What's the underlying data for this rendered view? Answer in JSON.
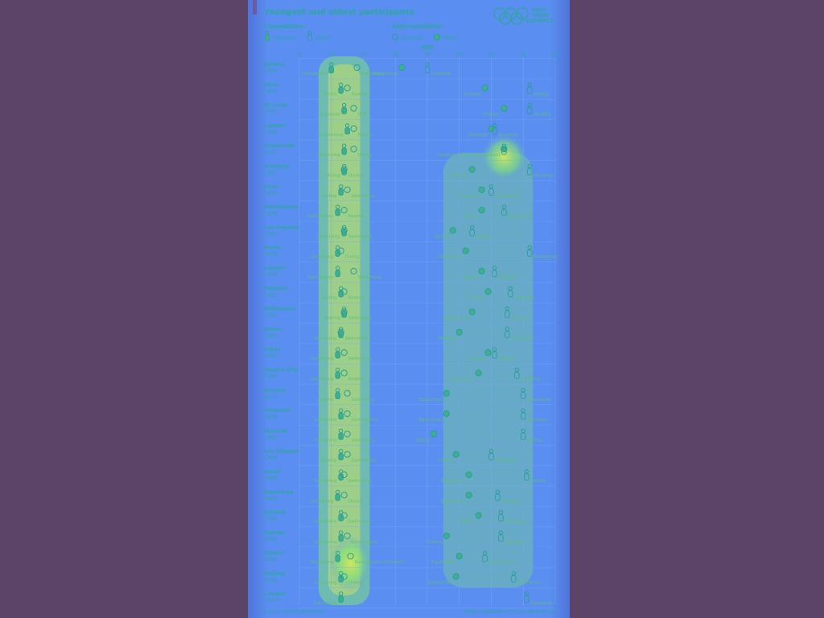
{
  "colors": {
    "background": "#5b4467",
    "panel": "#5a8ef0",
    "panel_edge": "#4ea6e8",
    "hot": "#d7e85a",
    "warm": "#7fe07a",
    "text": "#2fa6a0",
    "label": "#5fbf7a",
    "grid": "#7aa6f5",
    "marker_stroke": "#2a9e96",
    "marker_fill": "#3fb08e",
    "title_bar": "#6b5aa0"
  },
  "header": {
    "title": "Youngest and oldest participants",
    "logo_line1": "DAILY",
    "logo_line2": "CHART",
    "logo_line3": "OLYMPICS"
  },
  "legend": {
    "competitors_title": "Competitors:",
    "youngest": "Youngest",
    "oldest": "Oldest",
    "gold_title": "Gold medallists:",
    "gold_youngest": "Youngest",
    "gold_oldest": "Oldest"
  },
  "footer": {
    "source": "Source: Sports Reference",
    "note": "*Gold medallists yet to be determined"
  },
  "chart_data": {
    "type": "scatter",
    "title": "Youngest and oldest participants",
    "xlabel": "AGE",
    "xlim": [
      0,
      80
    ],
    "xticks": [
      "0",
      "10",
      "20",
      "30",
      "40",
      "50",
      "60",
      "70",
      "80"
    ],
    "series_names": [
      "Youngest competitor",
      "Youngest gold medallist",
      "Oldest gold medallist",
      "Oldest competitor"
    ],
    "games": [
      {
        "city": "Athens",
        "year": "1896",
        "yc": 10,
        "yc_sport": "Gymnastics",
        "yg": 18,
        "yg_sport": "Swimming",
        "og": 32,
        "og_sport": "Gymnastics",
        "oc": 40,
        "oc_sport": "Shooting"
      },
      {
        "city": "Paris",
        "year": "1900",
        "yc": 13,
        "yc_sport": "Tennis",
        "yg": 15,
        "yg_sport": "Rowing",
        "og": 58,
        "og_sport": "Croquet",
        "oc": 72,
        "oc_sport": "Sailing"
      },
      {
        "city": "St Louis",
        "year": "1904",
        "yc": 14,
        "yc_sport": "Lacrosse",
        "yg": 17,
        "yg_sport": "Golf",
        "og": 64,
        "og_sport": "Archery",
        "oc": 72,
        "oc_sport": "Archery"
      },
      {
        "city": "London",
        "year": "1908",
        "yc": 15,
        "yc_sport": "Swimming",
        "yg": 17,
        "yg_sport": "Rugby",
        "og": 60,
        "og_sport": "Shooting",
        "oc": 61,
        "oc_sport": "Shooting"
      },
      {
        "city": "Stockholm",
        "year": "1912",
        "yc": 14,
        "yc_sport": "Swimming",
        "yg": 17,
        "yg_sport": "Diving",
        "og": 64,
        "og_sport": "Shooting (team competition)",
        "oc": 64,
        "oc_sport": ""
      },
      {
        "city": "Antwerp",
        "year": "1920",
        "yc": 14,
        "yc_sport": "Diving",
        "yg": 14,
        "yg_sport": "Diving",
        "og": 54,
        "og_sport": "Archery",
        "oc": 72,
        "oc_sport": "Shooting"
      },
      {
        "city": "Paris",
        "year": "1924",
        "yc": 13,
        "yc_sport": "Sailing",
        "yg": 15,
        "yg_sport": "Swimming",
        "og": 57,
        "og_sport": "Shooting",
        "oc": 60,
        "oc_sport": "Equestrian"
      },
      {
        "city": "Amsterdam",
        "year": "1928",
        "yc": 12,
        "yc_sport": "Gymnastics",
        "yg": 14,
        "yg_sport": "Rowing",
        "og": 57,
        "og_sport": "Sailing",
        "oc": 64,
        "oc_sport": "Equestrian"
      },
      {
        "city": "Los Angeles",
        "year": "1932",
        "yc": 14,
        "yc_sport": "Swimming",
        "yg": 14,
        "yg_sport": "Swimming",
        "og": 48,
        "og_sport": "Sailing",
        "oc": 54,
        "oc_sport": "Sailing"
      },
      {
        "city": "Berlin",
        "year": "1936",
        "yc": 12,
        "yc_sport": "Swimming",
        "yg": 13,
        "yg_sport": "Diving",
        "og": 52,
        "og_sport": "Equestrian",
        "oc": 72,
        "oc_sport": "Equestrian"
      },
      {
        "city": "London",
        "year": "1948",
        "yc": 12,
        "yc_sport": "Gymnastics",
        "yg": 17,
        "yg_sport": "Swimming",
        "og": 57,
        "og_sport": "Sailing",
        "oc": 61,
        "oc_sport": "Fencing"
      },
      {
        "city": "Helsinki",
        "year": "1952",
        "yc": 13,
        "yc_sport": "Sailing",
        "yg": 14,
        "yg_sport": "Rowing",
        "og": 59,
        "og_sport": "Sailing",
        "oc": 66,
        "oc_sport": "Shooting"
      },
      {
        "city": "Melbourne",
        "year": "1956",
        "yc": 14,
        "yc_sport": "Rowing",
        "yg": 14,
        "yg_sport": "Swimming",
        "og": 54,
        "og_sport": "Equestrian",
        "oc": 65,
        "oc_sport": "Sailing"
      },
      {
        "city": "Rome",
        "year": "1960",
        "yc": 13,
        "yc_sport": "Swimming",
        "yg": 13,
        "yg_sport": "Swimming",
        "og": 50,
        "og_sport": "Fencing",
        "oc": 65,
        "oc_sport": "Equestrian"
      },
      {
        "city": "Tokyo",
        "year": "1964",
        "yc": 12,
        "yc_sport": "Swimming",
        "yg": 14,
        "yg_sport": "Swimming",
        "og": 59,
        "og_sport": "Sailing",
        "oc": 61,
        "oc_sport": "Rowing"
      },
      {
        "city": "Mexico City",
        "year": "1968",
        "yc": 12,
        "yc_sport": "Swimming",
        "yg": 14,
        "yg_sport": "Rowing",
        "og": 56,
        "og_sport": "Equestrian",
        "oc": 68,
        "oc_sport": "Shooting"
      },
      {
        "city": "Munich",
        "year": "1972",
        "yc": 12,
        "yc_sport": "Rowing",
        "yg": 15,
        "yg_sport": "Swimming",
        "og": 46,
        "og_sport": "Equestrian",
        "oc": 70,
        "oc_sport": "Equestrian"
      },
      {
        "city": "Montréal",
        "year": "1976",
        "yc": 13,
        "yc_sport": "Swimming",
        "yg": 15,
        "yg_sport": "Gymnastics",
        "og": 46,
        "og_sport": "Equestrian",
        "oc": 70,
        "oc_sport": "Shooting"
      },
      {
        "city": "Moscow",
        "year": "1980",
        "yc": 13,
        "yc_sport": "Swimming",
        "yg": 15,
        "yg_sport": "Swimming",
        "og": 42,
        "og_sport": "Sailing",
        "oc": 70,
        "oc_sport": "Sailing"
      },
      {
        "city": "Los Angeles",
        "year": "1984",
        "yc": 13,
        "yc_sport": "Rowing",
        "yg": 15,
        "yg_sport": "Gymnastics",
        "og": 49,
        "og_sport": "Sailing",
        "oc": 60,
        "oc_sport": "Shooting"
      },
      {
        "city": "Seoul",
        "year": "1988",
        "yc": 13,
        "yc_sport": "Swimming",
        "yg": 14,
        "yg_sport": "Swimming",
        "og": 53,
        "og_sport": "Equestrian",
        "oc": 71,
        "oc_sport": "Sailing"
      },
      {
        "city": "Barcelona",
        "year": "1992",
        "yc": 12,
        "yc_sport": "Swimming",
        "yg": 14,
        "yg_sport": "Diving",
        "og": 53,
        "og_sport": "Equestrian",
        "oc": 62,
        "oc_sport": "Shooting"
      },
      {
        "city": "Atlanta",
        "year": "1996",
        "yc": 13,
        "yc_sport": "Swimming",
        "yg": 14,
        "yg_sport": "Swimming",
        "og": 56,
        "og_sport": "Sailing",
        "oc": 63,
        "oc_sport": "Shooting"
      },
      {
        "city": "Sydney",
        "year": "2000",
        "yc": 13,
        "yc_sport": "Swimming",
        "yg": 15,
        "yg_sport": "Gymnastics",
        "og": 46,
        "og_sport": "Sailing",
        "oc": 63,
        "oc_sport": "Shooting"
      },
      {
        "city": "Athens",
        "year": "2004",
        "yc": 12,
        "yc_sport": "Swimming",
        "yg": 16,
        "yg_sport": "Gymnastics (rhythmic)",
        "og": 50,
        "og_sport": "Equestrian",
        "oc": 58,
        "oc_sport": "Equestrian"
      },
      {
        "city": "Beijing",
        "year": "2008",
        "yc": 13,
        "yc_sport": "Swimming",
        "yg": 14,
        "yg_sport": "Diving",
        "og": 49,
        "og_sport": "Equestrian",
        "oc": 67,
        "oc_sport": "Equestrian"
      },
      {
        "city": "London",
        "year": "2012*",
        "yc": 13,
        "yc_sport": "Swimming",
        "yg": null,
        "yg_sport": "",
        "og": null,
        "og_sport": "",
        "oc": 71,
        "oc_sport": "Equestrian"
      }
    ]
  }
}
